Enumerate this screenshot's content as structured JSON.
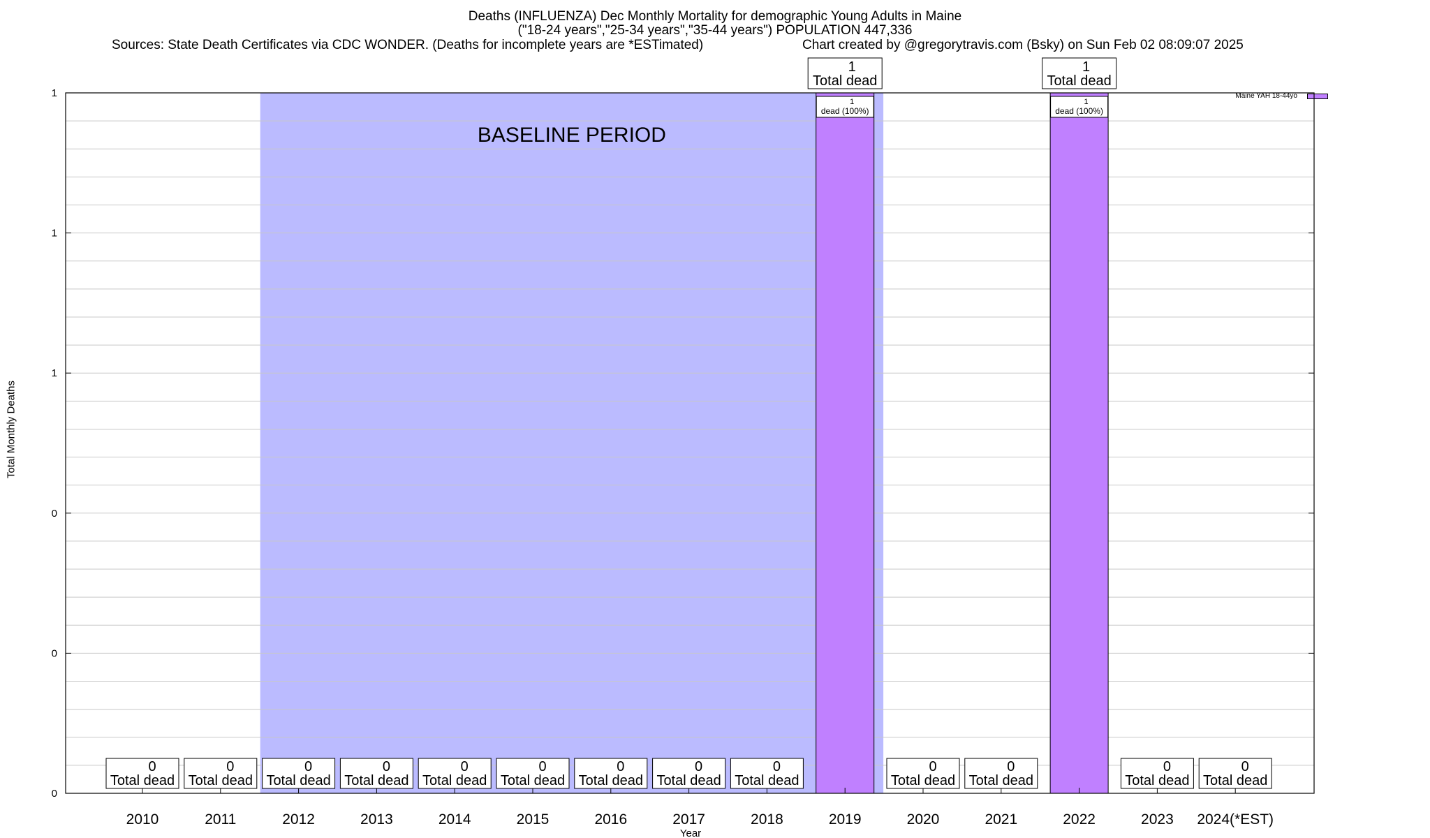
{
  "header": {
    "title_line1": "Deaths (INFLUENZA) Dec Monthly Mortality for demographic Young Adults in Maine",
    "title_line2": "(\"18-24 years\",\"25-34 years\",\"35-44 years\") POPULATION 447,336",
    "sources": "Sources: State Death Certificates via CDC WONDER. (Deaths for incomplete years are *ESTimated)",
    "credit": "Chart created by @gregorytravis.com (Bsky) on Sun Feb 02 08:09:07 2025"
  },
  "chart_data": {
    "type": "bar",
    "xlabel": "Year",
    "ylabel": "Total Monthly Deaths",
    "ylim": [
      0,
      1
    ],
    "y_tick_labels": [
      "0",
      "0",
      "0",
      "1",
      "1",
      "1"
    ],
    "categories": [
      "2010",
      "2011",
      "2012",
      "2013",
      "2014",
      "2015",
      "2016",
      "2017",
      "2018",
      "2019",
      "2020",
      "2021",
      "2022",
      "2023",
      "2024(*EST)"
    ],
    "series": [
      {
        "name": "Maine YAH 18-44yo",
        "color": "#c080ff",
        "values": [
          0,
          0,
          0,
          0,
          0,
          0,
          0,
          0,
          0,
          1,
          0,
          0,
          1,
          0,
          0
        ]
      }
    ],
    "total_labels": {
      "value_text": [
        "0",
        "0",
        "0",
        "0",
        "0",
        "0",
        "0",
        "0",
        "0",
        "1",
        "0",
        "0",
        "1",
        "0",
        "0"
      ],
      "caption": "Total dead"
    },
    "bar_inner_labels": {
      "count_text": [
        "",
        "",
        "",
        "",
        "",
        "",
        "",
        "",
        "",
        "1",
        "",
        "",
        "1",
        "",
        ""
      ],
      "caption_text": [
        "",
        "",
        "",
        "",
        "",
        "",
        "",
        "",
        "",
        "dead (100%)",
        "",
        "",
        "dead (100%)",
        "",
        ""
      ]
    },
    "baseline_period": {
      "label": "BASELINE PERIOD",
      "from": "2012",
      "to": "2019",
      "color": "#bbbbff"
    },
    "grid": true,
    "legend_position": "top-right"
  }
}
